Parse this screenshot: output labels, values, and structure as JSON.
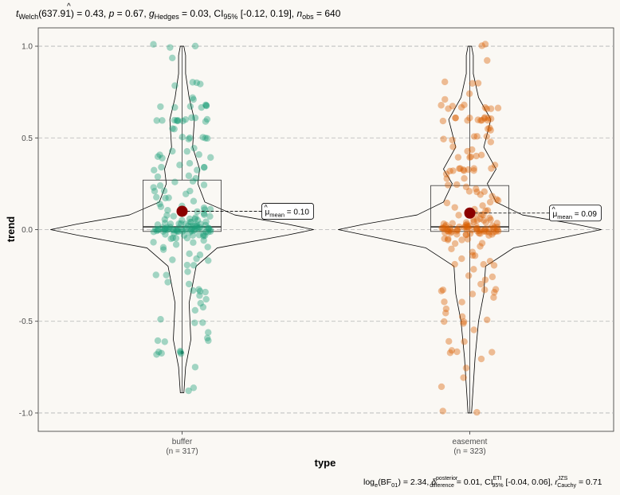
{
  "chart_data": {
    "type": "violin-box-scatter",
    "title": "t Welch(637.91) = 0.43, p = 0.67, ĝ Hedges = 0.03, CI95% [-0.12, 0.19], n obs = 640",
    "title_parts": {
      "t": "t",
      "t_sub": "Welch",
      "df": "(637.91) = 0.43, ",
      "p": "p",
      "p_val": " = 0.67, ",
      "g": "g",
      "g_sub": "Hedges",
      "g_val": " = 0.03, CI",
      "ci_sub": "95%",
      "ci_val": " [-0.12, 0.19], ",
      "n": "n",
      "n_sub": "obs",
      "n_val": " = 640"
    },
    "xlabel": "type",
    "ylabel": "trend",
    "ylim": [
      -1.1,
      1.1
    ],
    "yticks": [
      -1.0,
      -0.5,
      0.0,
      0.5,
      1.0
    ],
    "ytick_labels": [
      "-1.0",
      "-0.5",
      "0.0",
      "0.5",
      "1.0"
    ],
    "grid_y": true,
    "groups": [
      {
        "name": "buffer",
        "n_label": "(n = 317)",
        "n": 317,
        "color": "#1b9e77",
        "mean": 0.1,
        "mean_label": "μ̂mean = 0.10",
        "mean_label_parts": {
          "mu": "μ",
          "sub": "mean",
          "val": " = 0.10"
        },
        "box": {
          "q1": -0.01,
          "median": 0.015,
          "q3": 0.27,
          "whisker_low": -0.89,
          "whisker_high": 1.0
        },
        "outliers": [
          -0.67
        ],
        "violin_width": [
          [
            -0.89,
            0.01
          ],
          [
            -0.75,
            0.02
          ],
          [
            -0.6,
            0.05
          ],
          [
            -0.4,
            0.04
          ],
          [
            -0.2,
            0.08
          ],
          [
            -0.1,
            0.2
          ],
          [
            -0.03,
            0.6
          ],
          [
            0.0,
            0.75
          ],
          [
            0.03,
            0.6
          ],
          [
            0.08,
            0.3
          ],
          [
            0.15,
            0.13
          ],
          [
            0.25,
            0.09
          ],
          [
            0.33,
            0.1
          ],
          [
            0.45,
            0.06
          ],
          [
            0.6,
            0.07
          ],
          [
            0.72,
            0.04
          ],
          [
            0.85,
            0.02
          ],
          [
            0.95,
            0.02
          ],
          [
            1.0,
            0.01
          ]
        ]
      },
      {
        "name": "easement",
        "n_label": "(n = 323)",
        "n": 323,
        "color": "#d95f02",
        "mean": 0.09,
        "mean_label": "μ̂mean = 0.09",
        "mean_label_parts": {
          "mu": "μ",
          "sub": "mean",
          "val": " = 0.09"
        },
        "box": {
          "q1": -0.01,
          "median": 0.015,
          "q3": 0.24,
          "whisker_low": -1.0,
          "whisker_high": 1.0
        },
        "outliers": [],
        "violin_width": [
          [
            -1.0,
            0.01
          ],
          [
            -0.85,
            0.02
          ],
          [
            -0.7,
            0.03
          ],
          [
            -0.5,
            0.05
          ],
          [
            -0.35,
            0.08
          ],
          [
            -0.2,
            0.09
          ],
          [
            -0.1,
            0.25
          ],
          [
            -0.03,
            0.6
          ],
          [
            0.0,
            0.75
          ],
          [
            0.03,
            0.6
          ],
          [
            0.08,
            0.3
          ],
          [
            0.15,
            0.15
          ],
          [
            0.25,
            0.1
          ],
          [
            0.33,
            0.15
          ],
          [
            0.45,
            0.08
          ],
          [
            0.6,
            0.12
          ],
          [
            0.72,
            0.05
          ],
          [
            0.85,
            0.02
          ],
          [
            0.95,
            0.02
          ],
          [
            1.0,
            0.01
          ]
        ]
      }
    ],
    "points": {
      "buffer": [
        1.0,
        1.0,
        1.0,
        0.93,
        0.8,
        0.8,
        0.8,
        0.78,
        0.72,
        0.72,
        0.67,
        0.67,
        0.67,
        0.67,
        0.67,
        0.67,
        0.67,
        0.6,
        0.6,
        0.6,
        0.6,
        0.6,
        0.6,
        0.6,
        0.6,
        0.6,
        0.6,
        0.6,
        0.6,
        0.55,
        0.55,
        0.5,
        0.5,
        0.5,
        0.5,
        0.5,
        0.5,
        0.45,
        0.43,
        0.43,
        0.4,
        0.4,
        0.4,
        0.4,
        0.4,
        0.37,
        0.35,
        0.33,
        0.33,
        0.33,
        0.33,
        0.33,
        0.3,
        0.3,
        0.28,
        0.27,
        0.25,
        0.25,
        0.24,
        0.22,
        0.2,
        0.2,
        0.2,
        0.19,
        0.18,
        0.17,
        0.17,
        0.15,
        0.14,
        0.13,
        0.12,
        0.12,
        0.11,
        0.1,
        0.1,
        0.1,
        0.09,
        0.08,
        0.08,
        0.07,
        0.07,
        0.06,
        0.06,
        0.06,
        0.05,
        0.05,
        0.05,
        0.05,
        0.04,
        0.04,
        0.04,
        0.04,
        0.03,
        0.03,
        0.03,
        0.03,
        0.03,
        0.02,
        0.02,
        0.02,
        0.02,
        0.02,
        0.02,
        0.01,
        0.01,
        0.01,
        0.01,
        0.01,
        0.01,
        0.01,
        0.0,
        0.0,
        0.0,
        0.0,
        0.0,
        0.0,
        0.0,
        0.0,
        0.0,
        0.0,
        0.0,
        0.0,
        0.0,
        0.0,
        0.0,
        0.0,
        0.0,
        0.0,
        0.0,
        0.0,
        0.0,
        0.0,
        0.0,
        0.0,
        0.0,
        -0.01,
        -0.01,
        -0.01,
        -0.01,
        -0.01,
        -0.01,
        -0.01,
        -0.01,
        -0.02,
        -0.02,
        -0.02,
        -0.02,
        -0.02,
        -0.03,
        -0.03,
        -0.03,
        -0.03,
        -0.04,
        -0.04,
        -0.04,
        -0.05,
        -0.05,
        -0.06,
        -0.06,
        -0.07,
        -0.08,
        -0.09,
        -0.1,
        -0.1,
        -0.12,
        -0.14,
        -0.15,
        -0.17,
        -0.17,
        -0.2,
        -0.2,
        -0.22,
        -0.25,
        -0.25,
        -0.28,
        -0.3,
        -0.33,
        -0.33,
        -0.33,
        -0.33,
        -0.35,
        -0.38,
        -0.4,
        -0.43,
        -0.45,
        -0.5,
        -0.5,
        -0.5,
        -0.55,
        -0.6,
        -0.6,
        -0.6,
        -0.6,
        -0.67,
        -0.67,
        -0.67,
        -0.67,
        -0.67,
        -0.67,
        -0.75,
        -0.86,
        -0.89
      ],
      "easement": [
        1.0,
        1.0,
        0.93,
        0.8,
        0.8,
        0.8,
        0.75,
        0.72,
        0.67,
        0.67,
        0.67,
        0.67,
        0.67,
        0.67,
        0.67,
        0.67,
        0.67,
        0.6,
        0.6,
        0.6,
        0.6,
        0.6,
        0.6,
        0.6,
        0.6,
        0.6,
        0.6,
        0.6,
        0.6,
        0.6,
        0.55,
        0.55,
        0.55,
        0.5,
        0.5,
        0.5,
        0.5,
        0.5,
        0.47,
        0.45,
        0.43,
        0.43,
        0.4,
        0.4,
        0.4,
        0.4,
        0.4,
        0.35,
        0.33,
        0.33,
        0.33,
        0.33,
        0.33,
        0.33,
        0.33,
        0.33,
        0.33,
        0.33,
        0.3,
        0.28,
        0.27,
        0.25,
        0.25,
        0.24,
        0.22,
        0.2,
        0.2,
        0.2,
        0.2,
        0.18,
        0.17,
        0.17,
        0.15,
        0.14,
        0.13,
        0.12,
        0.11,
        0.1,
        0.1,
        0.09,
        0.08,
        0.08,
        0.07,
        0.07,
        0.06,
        0.06,
        0.05,
        0.05,
        0.05,
        0.04,
        0.04,
        0.04,
        0.04,
        0.03,
        0.03,
        0.03,
        0.03,
        0.02,
        0.02,
        0.02,
        0.02,
        0.02,
        0.01,
        0.01,
        0.01,
        0.01,
        0.01,
        0.01,
        0.0,
        0.0,
        0.0,
        0.0,
        0.0,
        0.0,
        0.0,
        0.0,
        0.0,
        0.0,
        0.0,
        0.0,
        0.0,
        0.0,
        0.0,
        0.0,
        0.0,
        0.0,
        0.0,
        0.0,
        0.0,
        0.0,
        0.0,
        0.0,
        0.0,
        0.0,
        -0.01,
        -0.01,
        -0.01,
        -0.01,
        -0.01,
        -0.01,
        -0.01,
        -0.02,
        -0.02,
        -0.02,
        -0.02,
        -0.02,
        -0.03,
        -0.03,
        -0.03,
        -0.04,
        -0.04,
        -0.05,
        -0.05,
        -0.06,
        -0.07,
        -0.08,
        -0.1,
        -0.1,
        -0.12,
        -0.14,
        -0.15,
        -0.17,
        -0.17,
        -0.2,
        -0.2,
        -0.2,
        -0.22,
        -0.25,
        -0.25,
        -0.28,
        -0.3,
        -0.33,
        -0.33,
        -0.33,
        -0.33,
        -0.33,
        -0.36,
        -0.38,
        -0.4,
        -0.4,
        -0.43,
        -0.45,
        -0.47,
        -0.5,
        -0.5,
        -0.5,
        -0.5,
        -0.55,
        -0.6,
        -0.6,
        -0.67,
        -0.67,
        -0.67,
        -0.67,
        -0.7,
        -0.75,
        -0.8,
        -0.85,
        -1.0,
        -1.0
      ]
    },
    "bottom_note": "loge(BF01) = 2.34, δ̂ posterior difference = 0.01, CI ETI 95% [-0.04, 0.06], r JZS Cauchy = 0.71",
    "bottom_note_parts": {
      "a": "log",
      "a_sub": "e",
      "b": "(BF",
      "b_sub": "01",
      "c": ") = 2.34, ",
      "delta": "δ",
      "delta_sup": "posterior",
      "delta_sub": "difference",
      "d": " = 0.01, CI",
      "ci_sup": "ETI",
      "ci_sub": "95%",
      "e": " [-0.04, 0.06], ",
      "r": "r",
      "r_sup": "JZS",
      "r_sub": "Cauchy",
      "f": " = 0.71"
    },
    "colors": {
      "background": "#faf8f4",
      "grid": "#b3b3b3",
      "mean_point": "#8b0000"
    }
  }
}
